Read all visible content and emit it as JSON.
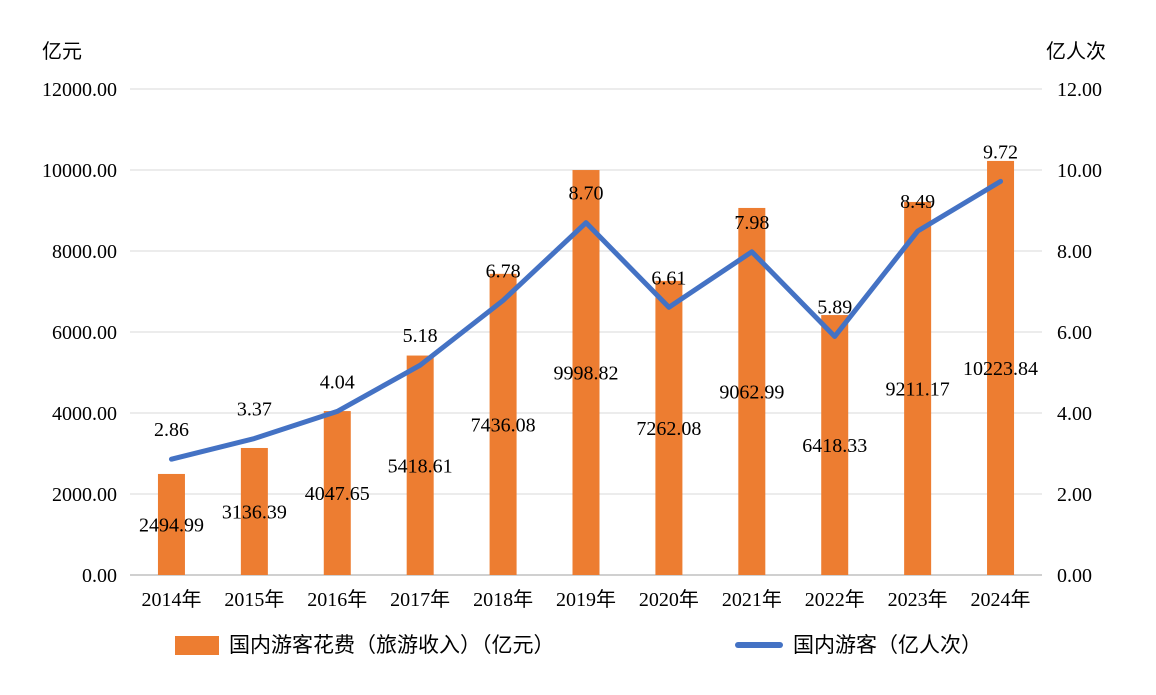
{
  "chart_data": {
    "type": "combo-bar-line",
    "categories": [
      "2014年",
      "2015年",
      "2016年",
      "2017年",
      "2018年",
      "2019年",
      "2020年",
      "2021年",
      "2022年",
      "2023年",
      "2024年"
    ],
    "series": [
      {
        "name": "国内游客花费（旅游收入）（亿元）",
        "type": "bar",
        "axis": "left",
        "color": "#ED7D31",
        "values": [
          2494.99,
          3136.39,
          4047.65,
          5418.61,
          7436.08,
          9998.82,
          7262.08,
          9062.99,
          6418.33,
          9211.17,
          10223.84
        ],
        "data_labels": [
          "2494.99",
          "3136.39",
          "4047.65",
          "5418.61",
          "7436.08",
          "9998.82",
          "7262.08",
          "9062.99",
          "6418.33",
          "9211.17",
          "10223.84"
        ]
      },
      {
        "name": "国内游客（亿人次）",
        "type": "line",
        "axis": "right",
        "color": "#4472C4",
        "values": [
          2.86,
          3.37,
          4.04,
          5.18,
          6.78,
          8.7,
          6.61,
          7.98,
          5.89,
          8.49,
          9.72
        ],
        "data_labels": [
          "2.86",
          "3.37",
          "4.04",
          "5.18",
          "6.78",
          "8.70",
          "6.61",
          "7.98",
          "5.89",
          "8.49",
          "9.72"
        ]
      }
    ],
    "left_axis": {
      "title": "亿元",
      "min": 0,
      "max": 12000,
      "step": 2000,
      "tick_labels": [
        "0.00",
        "2000.00",
        "4000.00",
        "6000.00",
        "8000.00",
        "10000.00",
        "12000.00"
      ]
    },
    "right_axis": {
      "title": "亿人次",
      "min": 0,
      "max": 12,
      "step": 2,
      "tick_labels": [
        "0.00",
        "2.00",
        "4.00",
        "6.00",
        "8.00",
        "10.00",
        "12.00"
      ]
    },
    "grid": true,
    "legend_position": "bottom"
  },
  "colors": {
    "bar": "#ED7D31",
    "line": "#4472C4",
    "gridline": "#D9D9D9",
    "axis_line": "#C0C0C0",
    "text": "#000000",
    "background": "#FFFFFF"
  }
}
